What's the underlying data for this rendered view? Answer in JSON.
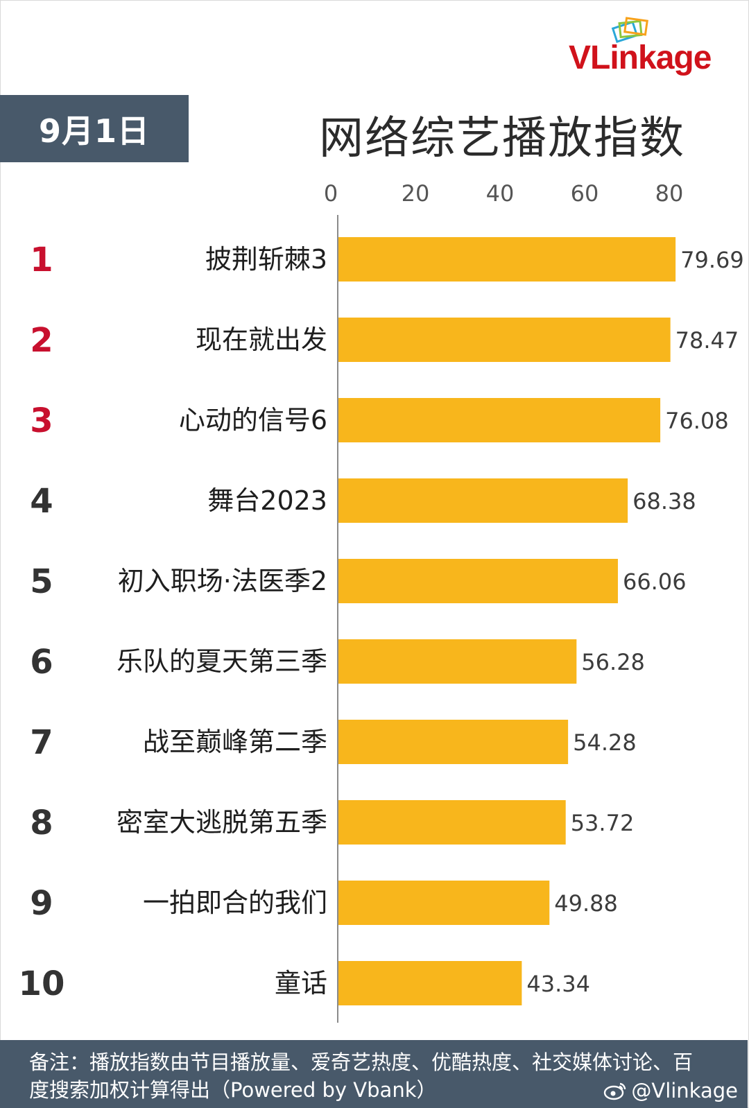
{
  "header": {
    "date": "9月1日",
    "title": "网络综艺播放指数",
    "logo_text": "VLinkage"
  },
  "footer": {
    "note": "备注：播放指数由节目播放量、爱奇艺热度、优酷热度、社交媒体讨论、百度搜索加权计算得出（Powered by Vbank）",
    "watermark": "@Vlinkage"
  },
  "colors": {
    "bar": "#f8b61c",
    "rank_top": "#c8102e",
    "rank_other": "#333333",
    "header_bg": "#48596a"
  },
  "chart_data": {
    "type": "bar",
    "orientation": "horizontal",
    "title": "网络综艺播放指数",
    "categories": [
      "披荆斩棘3",
      "现在就出发",
      "心动的信号6",
      "舞台2023",
      "初入职场·法医季2",
      "乐队的夏天第三季",
      "战至巅峰第二季",
      "密室大逃脱第五季",
      "一拍即合的我们",
      "童话"
    ],
    "ranks": [
      "1",
      "2",
      "3",
      "4",
      "5",
      "6",
      "7",
      "8",
      "9",
      "10"
    ],
    "values": [
      79.69,
      78.47,
      76.08,
      68.38,
      66.06,
      56.28,
      54.28,
      53.72,
      49.88,
      43.34
    ],
    "value_labels": [
      "79.69",
      "78.47",
      "76.08",
      "68.38",
      "66.06",
      "56.28",
      "54.28",
      "53.72",
      "49.88",
      "43.34"
    ],
    "xticks": [
      "0",
      "20",
      "40",
      "60",
      "80"
    ],
    "xlim": [
      0,
      80
    ],
    "xlabel": "",
    "ylabel": "",
    "grid": false,
    "axis_position": "top"
  }
}
